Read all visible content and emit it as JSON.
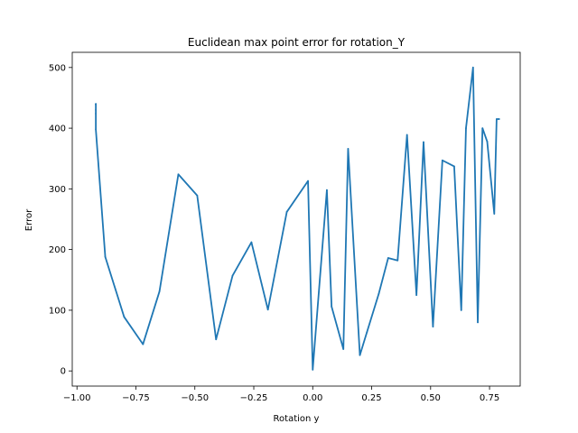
{
  "chart_data": {
    "type": "line",
    "title": "Euclidean max point error for rotation_Y",
    "xlabel": "Rotation y",
    "ylabel": "Error",
    "xlim": [
      -1.02,
      0.88
    ],
    "ylim": [
      -25,
      525
    ],
    "xticks": [
      -1.0,
      -0.75,
      -0.5,
      -0.25,
      0.0,
      0.25,
      0.5,
      0.75
    ],
    "xtick_labels": [
      "−1.00",
      "−0.75",
      "−0.50",
      "−0.25",
      "0.00",
      "0.25",
      "0.50",
      "0.75"
    ],
    "yticks": [
      0,
      100,
      200,
      300,
      400,
      500
    ],
    "ytick_labels": [
      "0",
      "100",
      "200",
      "300",
      "400",
      "500"
    ],
    "grid": false,
    "series": [
      {
        "color": "#1f77b4",
        "x": [
          -0.92,
          -0.92,
          -0.92,
          -0.92,
          -0.92,
          -0.88,
          -0.8,
          -0.72,
          -0.65,
          -0.57,
          -0.49,
          -0.41,
          -0.34,
          -0.26,
          -0.19,
          -0.11,
          -0.02,
          0.0,
          0.06,
          0.08,
          0.13,
          0.15,
          0.2,
          0.23,
          0.28,
          0.32,
          0.36,
          0.4,
          0.44,
          0.47,
          0.51,
          0.55,
          0.6,
          0.63,
          0.65,
          0.68,
          0.7,
          0.72,
          0.74,
          0.77,
          0.78,
          0.79
        ],
        "y": [
          430,
          440,
          424,
          439,
          398,
          188,
          89,
          44,
          131,
          324,
          289,
          52,
          157,
          212,
          101,
          262,
          313,
          2,
          298,
          106,
          36,
          366,
          26,
          64,
          127,
          186,
          182,
          389,
          125,
          377,
          73,
          347,
          337,
          100,
          400,
          500,
          80,
          400,
          378,
          259,
          415,
          415
        ]
      }
    ]
  }
}
